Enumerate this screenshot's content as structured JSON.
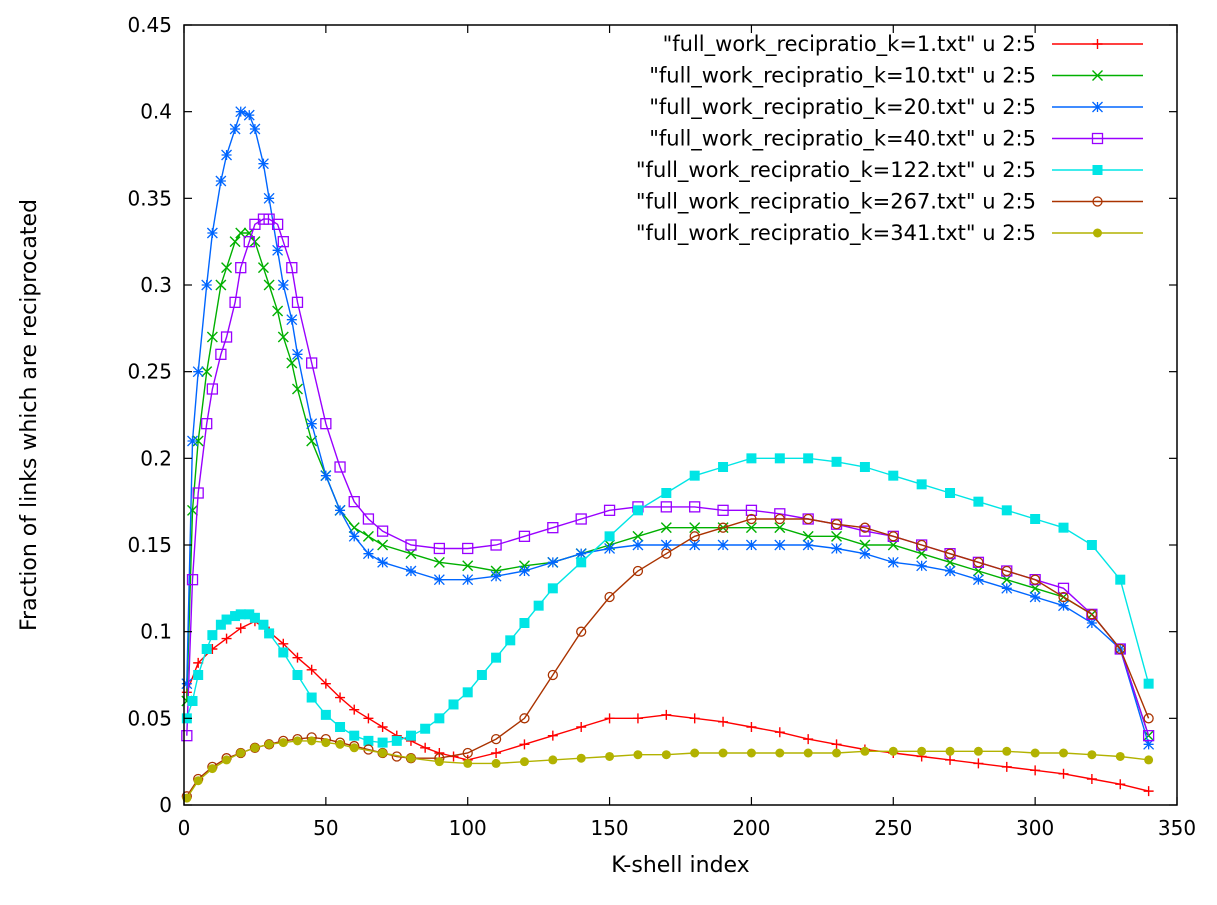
{
  "chart_data": {
    "type": "line",
    "title": "",
    "xlabel": "K-shell index",
    "ylabel": "Fraction of links which are reciprocated",
    "xlim": [
      0,
      350
    ],
    "ylim": [
      0,
      0.45
    ],
    "xticks": [
      0,
      50,
      100,
      150,
      200,
      250,
      300,
      350
    ],
    "yticks": [
      0,
      0.05,
      0.1,
      0.15,
      0.2,
      0.25,
      0.3,
      0.35,
      0.4,
      0.45
    ],
    "xtick_labels": [
      "0",
      "50",
      "100",
      "150",
      "200",
      "250",
      "300",
      "350"
    ],
    "ytick_labels": [
      "0",
      "0.05",
      "0.1",
      "0.15",
      "0.2",
      "0.25",
      "0.3",
      "0.35",
      "0.4",
      "0.45"
    ],
    "grid": false,
    "legend_position": "top-right",
    "series": [
      {
        "name": "\"full_work_recipratio_k=1.txt\" u 2:5",
        "color": "#ff0000",
        "marker": "plus",
        "x": [
          1,
          5,
          10,
          15,
          20,
          25,
          30,
          35,
          40,
          45,
          50,
          55,
          60,
          65,
          70,
          75,
          80,
          85,
          90,
          95,
          100,
          110,
          120,
          130,
          140,
          150,
          160,
          170,
          180,
          190,
          200,
          210,
          220,
          230,
          240,
          250,
          260,
          270,
          280,
          290,
          300,
          310,
          320,
          330,
          340
        ],
        "y": [
          0.065,
          0.082,
          0.09,
          0.096,
          0.102,
          0.106,
          0.1,
          0.093,
          0.085,
          0.078,
          0.07,
          0.062,
          0.055,
          0.05,
          0.045,
          0.04,
          0.037,
          0.033,
          0.03,
          0.028,
          0.026,
          0.03,
          0.035,
          0.04,
          0.045,
          0.05,
          0.05,
          0.052,
          0.05,
          0.048,
          0.045,
          0.042,
          0.038,
          0.035,
          0.032,
          0.03,
          0.028,
          0.026,
          0.024,
          0.022,
          0.02,
          0.018,
          0.015,
          0.012,
          0.008
        ]
      },
      {
        "name": "\"full_work_recipratio_k=10.txt\" u 2:5",
        "color": "#00b000",
        "marker": "x",
        "x": [
          1,
          3,
          5,
          8,
          10,
          13,
          15,
          18,
          20,
          23,
          25,
          28,
          30,
          33,
          35,
          38,
          40,
          45,
          50,
          55,
          60,
          65,
          70,
          80,
          90,
          100,
          110,
          120,
          130,
          140,
          150,
          160,
          170,
          180,
          190,
          200,
          210,
          220,
          230,
          240,
          250,
          260,
          270,
          280,
          290,
          300,
          310,
          320,
          330,
          340
        ],
        "y": [
          0.06,
          0.17,
          0.21,
          0.25,
          0.27,
          0.3,
          0.31,
          0.325,
          0.33,
          0.33,
          0.325,
          0.31,
          0.3,
          0.285,
          0.27,
          0.255,
          0.24,
          0.21,
          0.19,
          0.17,
          0.16,
          0.155,
          0.15,
          0.145,
          0.14,
          0.138,
          0.135,
          0.138,
          0.14,
          0.145,
          0.15,
          0.155,
          0.16,
          0.16,
          0.16,
          0.16,
          0.16,
          0.155,
          0.155,
          0.15,
          0.15,
          0.145,
          0.14,
          0.135,
          0.13,
          0.125,
          0.12,
          0.11,
          0.09,
          0.04
        ]
      },
      {
        "name": "\"full_work_recipratio_k=20.txt\" u 2:5",
        "color": "#0066ff",
        "marker": "star",
        "x": [
          1,
          3,
          5,
          8,
          10,
          13,
          15,
          18,
          20,
          23,
          25,
          28,
          30,
          33,
          35,
          38,
          40,
          45,
          50,
          55,
          60,
          65,
          70,
          80,
          90,
          100,
          110,
          120,
          130,
          140,
          150,
          160,
          170,
          180,
          190,
          200,
          210,
          220,
          230,
          240,
          250,
          260,
          270,
          280,
          290,
          300,
          310,
          320,
          330,
          340
        ],
        "y": [
          0.07,
          0.21,
          0.25,
          0.3,
          0.33,
          0.36,
          0.375,
          0.39,
          0.4,
          0.398,
          0.39,
          0.37,
          0.35,
          0.32,
          0.3,
          0.28,
          0.26,
          0.22,
          0.19,
          0.17,
          0.155,
          0.145,
          0.14,
          0.135,
          0.13,
          0.13,
          0.132,
          0.135,
          0.14,
          0.145,
          0.148,
          0.15,
          0.15,
          0.15,
          0.15,
          0.15,
          0.15,
          0.15,
          0.148,
          0.145,
          0.14,
          0.138,
          0.135,
          0.13,
          0.125,
          0.12,
          0.115,
          0.105,
          0.09,
          0.035
        ]
      },
      {
        "name": "\"full_work_recipratio_k=40.txt\" u 2:5",
        "color": "#9900ff",
        "marker": "open-square",
        "x": [
          1,
          3,
          5,
          8,
          10,
          13,
          15,
          18,
          20,
          23,
          25,
          28,
          30,
          33,
          35,
          38,
          40,
          45,
          50,
          55,
          60,
          65,
          70,
          80,
          90,
          100,
          110,
          120,
          130,
          140,
          150,
          160,
          170,
          180,
          190,
          200,
          210,
          220,
          230,
          240,
          250,
          260,
          270,
          280,
          290,
          300,
          310,
          320,
          330,
          340
        ],
        "y": [
          0.04,
          0.13,
          0.18,
          0.22,
          0.24,
          0.26,
          0.27,
          0.29,
          0.31,
          0.325,
          0.335,
          0.338,
          0.338,
          0.335,
          0.325,
          0.31,
          0.29,
          0.255,
          0.22,
          0.195,
          0.175,
          0.165,
          0.158,
          0.15,
          0.148,
          0.148,
          0.15,
          0.155,
          0.16,
          0.165,
          0.17,
          0.172,
          0.172,
          0.172,
          0.17,
          0.17,
          0.168,
          0.165,
          0.162,
          0.158,
          0.155,
          0.15,
          0.145,
          0.14,
          0.135,
          0.13,
          0.125,
          0.11,
          0.09,
          0.04
        ]
      },
      {
        "name": "\"full_work_recipratio_k=122.txt\" u 2:5",
        "color": "#00e5e5",
        "marker": "filled-square",
        "x": [
          1,
          3,
          5,
          8,
          10,
          13,
          15,
          18,
          20,
          23,
          25,
          28,
          30,
          35,
          40,
          45,
          50,
          55,
          60,
          65,
          70,
          75,
          80,
          85,
          90,
          95,
          100,
          105,
          110,
          115,
          120,
          125,
          130,
          140,
          150,
          160,
          170,
          180,
          190,
          200,
          210,
          220,
          230,
          240,
          250,
          260,
          270,
          280,
          290,
          300,
          310,
          320,
          330,
          340
        ],
        "y": [
          0.05,
          0.06,
          0.075,
          0.09,
          0.098,
          0.104,
          0.107,
          0.109,
          0.11,
          0.11,
          0.108,
          0.104,
          0.099,
          0.088,
          0.075,
          0.062,
          0.052,
          0.045,
          0.04,
          0.037,
          0.036,
          0.037,
          0.04,
          0.044,
          0.05,
          0.058,
          0.065,
          0.075,
          0.085,
          0.095,
          0.105,
          0.115,
          0.125,
          0.14,
          0.155,
          0.17,
          0.18,
          0.19,
          0.195,
          0.2,
          0.2,
          0.2,
          0.198,
          0.195,
          0.19,
          0.185,
          0.18,
          0.175,
          0.17,
          0.165,
          0.16,
          0.15,
          0.13,
          0.07
        ]
      },
      {
        "name": "\"full_work_recipratio_k=267.txt\" u 2:5",
        "color": "#aa3300",
        "marker": "open-circle",
        "x": [
          1,
          5,
          10,
          15,
          20,
          25,
          30,
          35,
          40,
          45,
          50,
          55,
          60,
          65,
          70,
          75,
          80,
          90,
          100,
          110,
          120,
          130,
          140,
          150,
          160,
          170,
          180,
          190,
          200,
          210,
          220,
          230,
          240,
          250,
          260,
          270,
          280,
          290,
          300,
          310,
          320,
          330,
          340
        ],
        "y": [
          0.005,
          0.015,
          0.022,
          0.027,
          0.03,
          0.033,
          0.035,
          0.037,
          0.038,
          0.039,
          0.038,
          0.036,
          0.034,
          0.032,
          0.03,
          0.028,
          0.027,
          0.027,
          0.03,
          0.038,
          0.05,
          0.075,
          0.1,
          0.12,
          0.135,
          0.145,
          0.155,
          0.16,
          0.165,
          0.165,
          0.165,
          0.162,
          0.16,
          0.155,
          0.15,
          0.145,
          0.14,
          0.135,
          0.13,
          0.12,
          0.11,
          0.09,
          0.05
        ]
      },
      {
        "name": "\"full_work_recipratio_k=341.txt\" u 2:5",
        "color": "#b2b200",
        "marker": "filled-circle",
        "x": [
          1,
          5,
          10,
          15,
          20,
          25,
          30,
          35,
          40,
          45,
          50,
          55,
          60,
          70,
          80,
          90,
          100,
          110,
          120,
          130,
          140,
          150,
          160,
          170,
          180,
          190,
          200,
          210,
          220,
          230,
          240,
          250,
          260,
          270,
          280,
          290,
          300,
          310,
          320,
          330,
          340
        ],
        "y": [
          0.004,
          0.014,
          0.021,
          0.026,
          0.03,
          0.033,
          0.035,
          0.036,
          0.037,
          0.037,
          0.036,
          0.035,
          0.033,
          0.03,
          0.027,
          0.025,
          0.024,
          0.024,
          0.025,
          0.026,
          0.027,
          0.028,
          0.029,
          0.029,
          0.03,
          0.03,
          0.03,
          0.03,
          0.03,
          0.03,
          0.031,
          0.031,
          0.031,
          0.031,
          0.031,
          0.031,
          0.03,
          0.03,
          0.029,
          0.028,
          0.026
        ]
      }
    ]
  }
}
